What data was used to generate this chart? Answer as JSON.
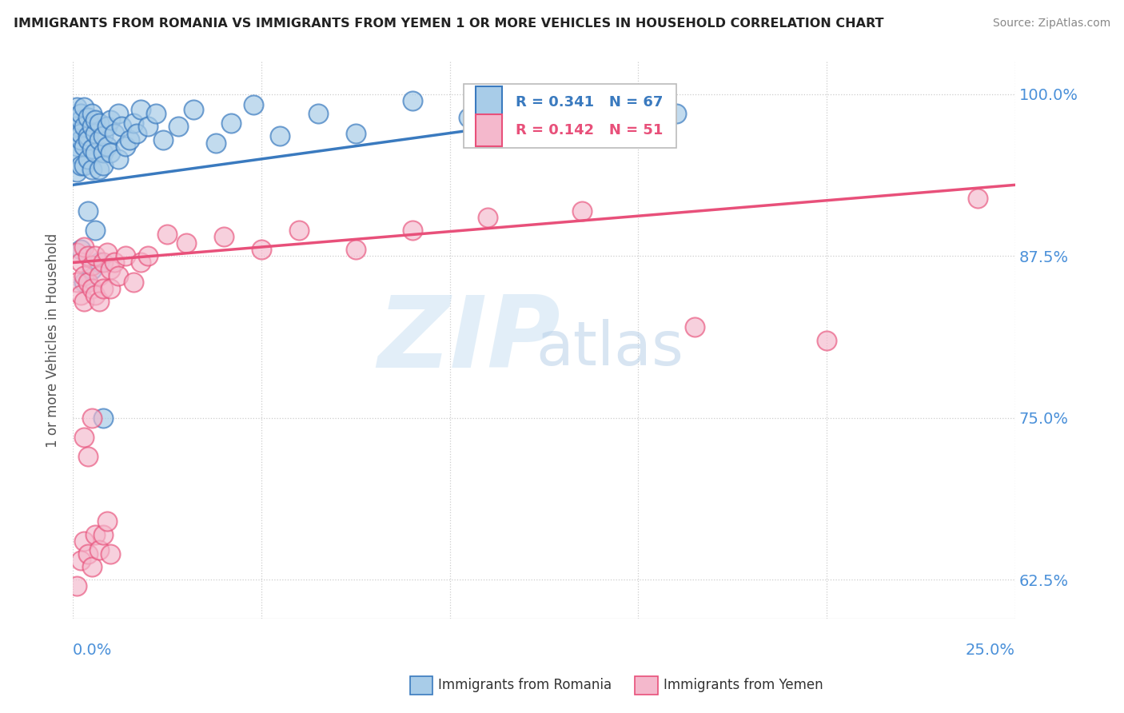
{
  "title": "IMMIGRANTS FROM ROMANIA VS IMMIGRANTS FROM YEMEN 1 OR MORE VEHICLES IN HOUSEHOLD CORRELATION CHART",
  "source": "Source: ZipAtlas.com",
  "ylabel_label": "1 or more Vehicles in Household",
  "legend_romania": "Immigrants from Romania",
  "legend_yemen": "Immigrants from Yemen",
  "R_romania": 0.341,
  "N_romania": 67,
  "R_yemen": 0.142,
  "N_yemen": 51,
  "color_romania": "#a8cce8",
  "color_yemen": "#f4b8cc",
  "color_romania_line": "#3a7abf",
  "color_yemen_line": "#e8507a",
  "background": "#ffffff",
  "xmin": 0.0,
  "xmax": 0.25,
  "ymin": 0.595,
  "ymax": 1.025,
  "romania_x": [
    0.001,
    0.001,
    0.001,
    0.001,
    0.001,
    0.002,
    0.002,
    0.002,
    0.002,
    0.002,
    0.003,
    0.003,
    0.003,
    0.003,
    0.004,
    0.004,
    0.004,
    0.004,
    0.005,
    0.005,
    0.005,
    0.005,
    0.006,
    0.006,
    0.006,
    0.007,
    0.007,
    0.007,
    0.008,
    0.008,
    0.008,
    0.009,
    0.009,
    0.01,
    0.01,
    0.011,
    0.012,
    0.012,
    0.013,
    0.014,
    0.015,
    0.016,
    0.017,
    0.018,
    0.02,
    0.022,
    0.024,
    0.028,
    0.032,
    0.038,
    0.042,
    0.048,
    0.055,
    0.065,
    0.075,
    0.09,
    0.105,
    0.12,
    0.14,
    0.16,
    0.002,
    0.003,
    0.004,
    0.005,
    0.006,
    0.007,
    0.008
  ],
  "romania_y": [
    0.94,
    0.96,
    0.975,
    0.99,
    0.955,
    0.965,
    0.98,
    0.945,
    0.97,
    0.985,
    0.96,
    0.975,
    0.99,
    0.945,
    0.968,
    0.982,
    0.95,
    0.965,
    0.975,
    0.958,
    0.942,
    0.985,
    0.97,
    0.955,
    0.98,
    0.965,
    0.978,
    0.942,
    0.955,
    0.968,
    0.945,
    0.96,
    0.975,
    0.955,
    0.98,
    0.97,
    0.985,
    0.95,
    0.975,
    0.96,
    0.965,
    0.978,
    0.97,
    0.988,
    0.975,
    0.985,
    0.965,
    0.975,
    0.988,
    0.962,
    0.978,
    0.992,
    0.968,
    0.985,
    0.97,
    0.995,
    0.982,
    0.978,
    0.99,
    0.985,
    0.88,
    0.855,
    0.91,
    0.865,
    0.895,
    0.87,
    0.75
  ],
  "yemen_x": [
    0.001,
    0.001,
    0.002,
    0.002,
    0.003,
    0.003,
    0.003,
    0.004,
    0.004,
    0.005,
    0.005,
    0.006,
    0.006,
    0.007,
    0.007,
    0.008,
    0.008,
    0.009,
    0.01,
    0.01,
    0.011,
    0.012,
    0.014,
    0.016,
    0.018,
    0.02,
    0.025,
    0.03,
    0.04,
    0.05,
    0.06,
    0.075,
    0.09,
    0.11,
    0.135,
    0.165,
    0.2,
    0.24,
    0.001,
    0.002,
    0.003,
    0.004,
    0.005,
    0.006,
    0.007,
    0.008,
    0.009,
    0.01,
    0.003,
    0.004,
    0.005
  ],
  "yemen_y": [
    0.878,
    0.855,
    0.87,
    0.845,
    0.882,
    0.86,
    0.84,
    0.875,
    0.855,
    0.868,
    0.85,
    0.875,
    0.845,
    0.86,
    0.84,
    0.87,
    0.85,
    0.878,
    0.865,
    0.85,
    0.87,
    0.86,
    0.875,
    0.855,
    0.87,
    0.875,
    0.892,
    0.885,
    0.89,
    0.88,
    0.895,
    0.88,
    0.895,
    0.905,
    0.91,
    0.82,
    0.81,
    0.92,
    0.62,
    0.64,
    0.655,
    0.645,
    0.635,
    0.66,
    0.648,
    0.66,
    0.67,
    0.645,
    0.735,
    0.72,
    0.75
  ]
}
